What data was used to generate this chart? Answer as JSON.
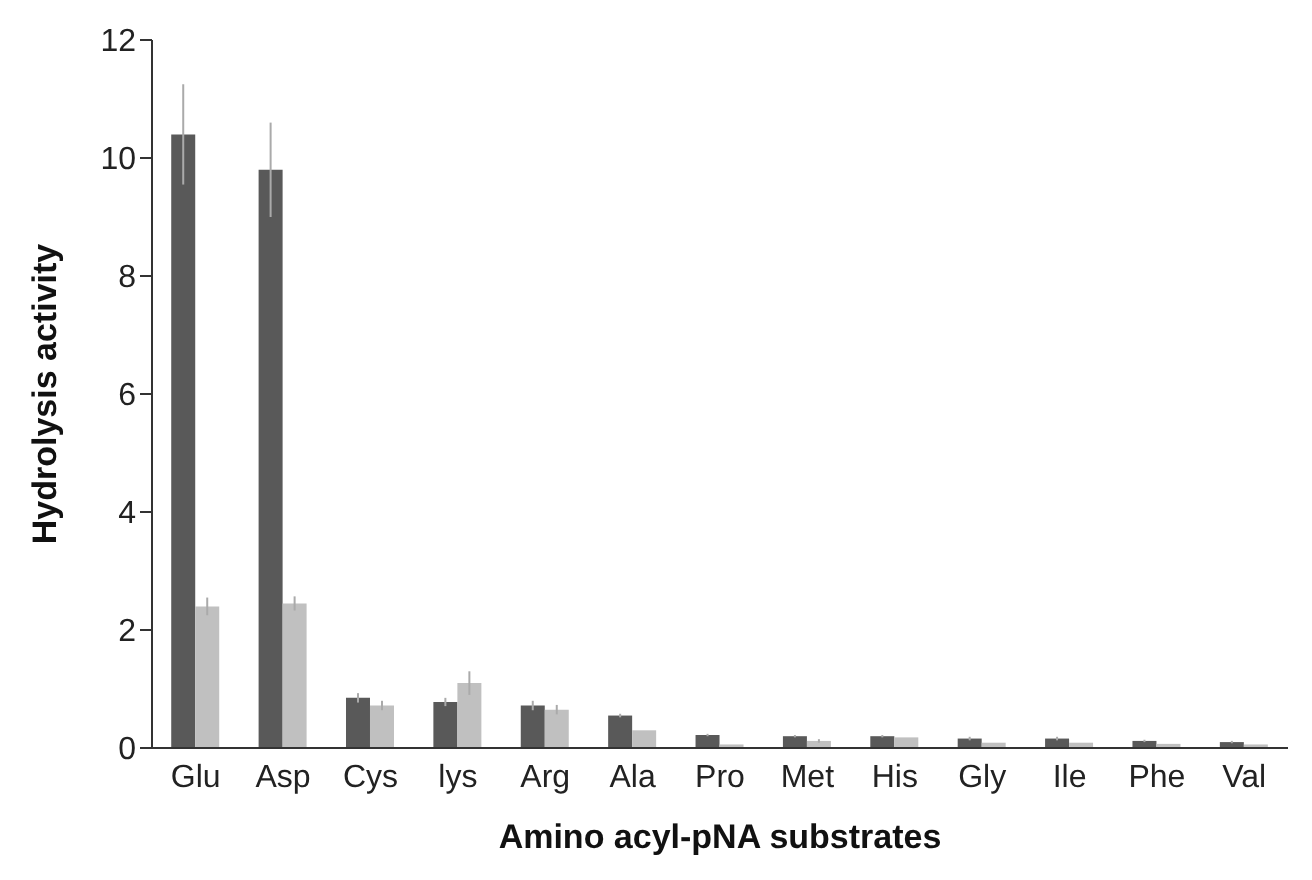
{
  "chart_data": {
    "type": "bar",
    "xlabel": "Amino acyl-pNA substrates",
    "ylabel": "Hydrolysis activity",
    "categories": [
      "Glu",
      "Asp",
      "Cys",
      "lys",
      "Arg",
      "Ala",
      "Pro",
      "Met",
      "His",
      "Gly",
      "Ile",
      "Phe",
      "Val"
    ],
    "series": [
      {
        "color": "#595959",
        "values": [
          10.4,
          9.8,
          0.85,
          0.78,
          0.72,
          0.55,
          0.22,
          0.2,
          0.2,
          0.16,
          0.16,
          0.12,
          0.1
        ],
        "errors": [
          0.85,
          0.8,
          0.08,
          0.07,
          0.08,
          0.03,
          0.02,
          0.02,
          0.02,
          0.03,
          0.03,
          0.02,
          0.02
        ]
      },
      {
        "color": "#c0c0c0",
        "values": [
          2.4,
          2.45,
          0.72,
          1.1,
          0.65,
          0.3,
          0.06,
          0.12,
          0.18,
          0.09,
          0.09,
          0.07,
          0.06
        ],
        "errors": [
          0.15,
          0.12,
          0.08,
          0.2,
          0.08,
          null,
          null,
          0.03,
          null,
          null,
          null,
          null,
          null
        ]
      }
    ],
    "ylim": [
      0,
      12
    ],
    "yticks": [
      0,
      2,
      4,
      6,
      8,
      10,
      12
    ],
    "grid": false,
    "legend": false
  }
}
